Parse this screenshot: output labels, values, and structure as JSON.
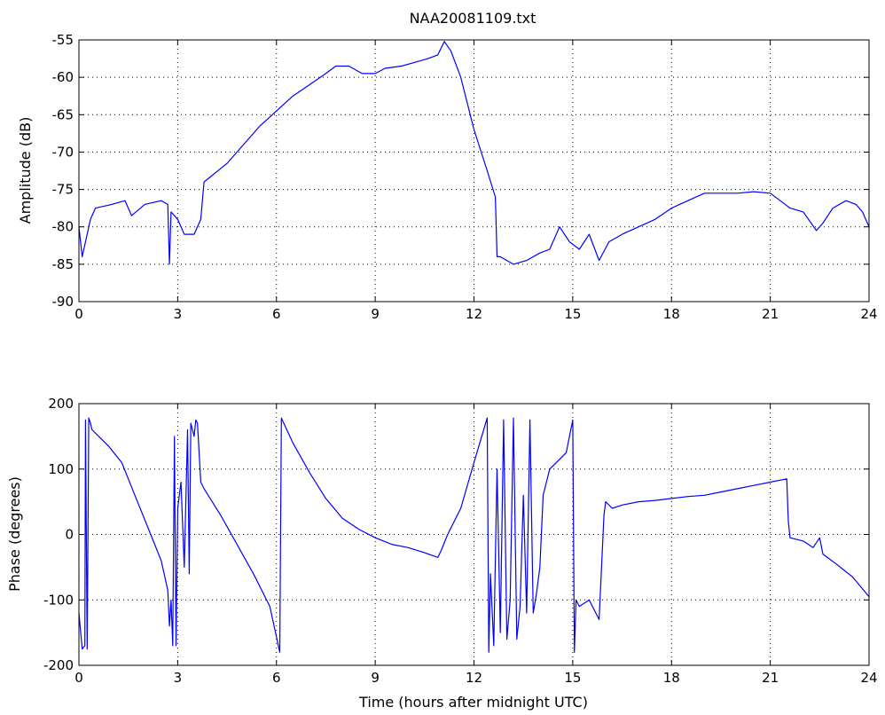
{
  "figure": {
    "title": "NAA20081109.txt",
    "line_color": "#0000ff"
  },
  "chart_data": [
    {
      "type": "line",
      "title": "NAA20081109.txt",
      "xlabel": "",
      "ylabel": "Amplitude (dB)",
      "xlim": [
        0,
        24
      ],
      "ylim": [
        -90,
        -55
      ],
      "xticks": [
        0,
        3,
        6,
        9,
        12,
        15,
        18,
        21,
        24
      ],
      "yticks": [
        -90,
        -85,
        -80,
        -75,
        -70,
        -65,
        -60,
        -55
      ],
      "grid": true,
      "series": [
        {
          "color": "#0000ff",
          "x": [
            0,
            0.1,
            0.2,
            0.35,
            0.5,
            1.0,
            1.4,
            1.6,
            2.0,
            2.5,
            2.7,
            2.75,
            2.8,
            3.0,
            3.2,
            3.5,
            3.7,
            3.8,
            4.5,
            5.0,
            5.5,
            6.0,
            6.5,
            7.0,
            7.5,
            7.8,
            8.2,
            8.6,
            9.0,
            9.3,
            9.8,
            10.2,
            10.6,
            10.9,
            11.1,
            11.3,
            11.6,
            12.0,
            12.4,
            12.65,
            12.7,
            12.8,
            13.2,
            13.6,
            14.0,
            14.3,
            14.6,
            14.9,
            15.2,
            15.5,
            15.8,
            16.1,
            16.5,
            17.0,
            17.5,
            18.0,
            18.5,
            19.0,
            19.5,
            20.0,
            20.5,
            21.0,
            21.3,
            21.6,
            22.0,
            22.4,
            22.6,
            22.9,
            23.3,
            23.6,
            23.8,
            24.0
          ],
          "y": [
            -80,
            -84,
            -82,
            -79,
            -77.5,
            -77,
            -76.5,
            -78.5,
            -77,
            -76.5,
            -77,
            -85,
            -78,
            -79,
            -81,
            -81,
            -79,
            -74,
            -71.5,
            -69,
            -66.5,
            -64.5,
            -62.5,
            -61,
            -59.5,
            -58.5,
            -58.5,
            -59.5,
            -59.5,
            -58.8,
            -58.5,
            -58,
            -57.5,
            -57,
            -55.2,
            -56.5,
            -60,
            -67,
            -72.5,
            -76,
            -84,
            -84,
            -85,
            -84.5,
            -83.5,
            -83,
            -80,
            -82,
            -83,
            -81,
            -84.5,
            -82,
            -81,
            -80,
            -79,
            -77.5,
            -76.5,
            -75.5,
            -75.5,
            -75.5,
            -75.3,
            -75.5,
            -76.5,
            -77.5,
            -78,
            -80.5,
            -79.5,
            -77.5,
            -76.5,
            -77,
            -78,
            -80
          ]
        }
      ]
    },
    {
      "type": "line",
      "title": "",
      "xlabel": "Time (hours after midnight UTC)",
      "ylabel": "Phase (degrees)",
      "xlim": [
        0,
        24
      ],
      "ylim": [
        -200,
        200
      ],
      "xticks": [
        0,
        3,
        6,
        9,
        12,
        15,
        18,
        21,
        24
      ],
      "yticks": [
        -200,
        -100,
        0,
        100,
        200
      ],
      "grid": true,
      "series": [
        {
          "color": "#0000ff",
          "x": [
            0,
            0.1,
            0.18,
            0.2,
            0.25,
            0.3,
            0.35,
            0.4,
            0.6,
            0.9,
            1.3,
            1.7,
            2.1,
            2.5,
            2.7,
            2.75,
            2.8,
            2.85,
            2.9,
            2.95,
            3.0,
            3.1,
            3.2,
            3.3,
            3.35,
            3.4,
            3.5,
            3.55,
            3.6,
            3.7,
            3.8,
            4.3,
            4.8,
            5.3,
            5.8,
            6.1,
            6.15,
            6.5,
            7.0,
            7.5,
            8.0,
            8.5,
            9.0,
            9.5,
            10.0,
            10.5,
            10.9,
            11.0,
            11.2,
            11.6,
            12.0,
            12.4,
            12.45,
            12.5,
            12.6,
            12.7,
            12.8,
            12.9,
            13.0,
            13.1,
            13.2,
            13.3,
            13.4,
            13.5,
            13.6,
            13.7,
            13.8,
            13.9,
            14.0,
            14.1,
            14.2,
            14.3,
            14.5,
            14.8,
            15.0,
            15.05,
            15.1,
            15.2,
            15.5,
            15.8,
            15.95,
            16.0,
            16.2,
            16.5,
            17.0,
            17.5,
            18.0,
            18.5,
            19.0,
            19.5,
            20.0,
            20.5,
            21.0,
            21.5,
            21.55,
            21.6,
            22.0,
            22.3,
            22.5,
            22.6,
            23.0,
            23.5,
            24.0
          ],
          "y": [
            -120,
            -175,
            -170,
            175,
            -175,
            178,
            170,
            160,
            150,
            135,
            110,
            60,
            10,
            -40,
            -85,
            -140,
            -100,
            -170,
            150,
            -170,
            40,
            80,
            -50,
            160,
            -60,
            170,
            150,
            175,
            170,
            80,
            70,
            30,
            -15,
            -60,
            -110,
            -180,
            178,
            140,
            95,
            55,
            25,
            8,
            -5,
            -15,
            -20,
            -28,
            -35,
            -25,
            0,
            40,
            110,
            178,
            -180,
            -60,
            -170,
            100,
            -150,
            175,
            -160,
            -100,
            178,
            -160,
            -110,
            60,
            -120,
            175,
            -120,
            -90,
            -50,
            60,
            80,
            100,
            110,
            125,
            175,
            -180,
            -100,
            -110,
            -100,
            -130,
            30,
            50,
            40,
            45,
            50,
            52,
            55,
            58,
            60,
            65,
            70,
            75,
            80,
            85,
            20,
            -5,
            -10,
            -20,
            -5,
            -30,
            -45,
            -65,
            -95
          ]
        }
      ]
    }
  ]
}
